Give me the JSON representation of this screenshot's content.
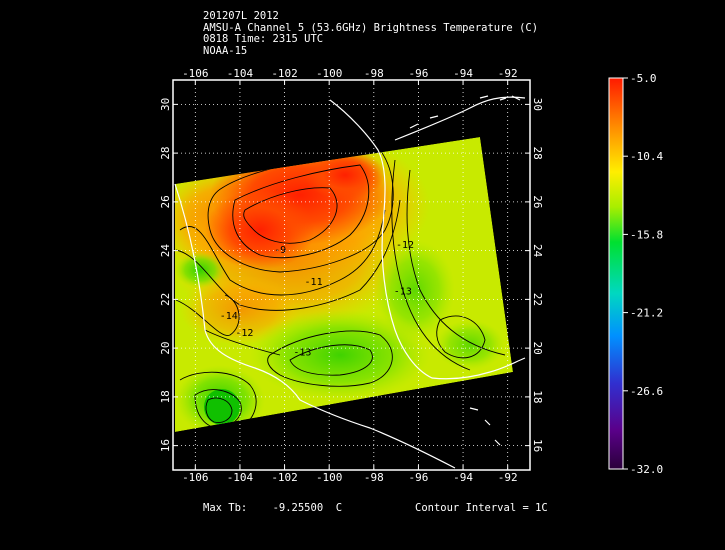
{
  "header": {
    "line1": "201207L 2012",
    "line2": "AMSU-A Channel 5 (53.6GHz) Brightness Temperature (C)",
    "line3": "0818 Time: 2315 UTC",
    "line4": "NOAA-15"
  },
  "map": {
    "lon_ticks": [
      "-106",
      "-104",
      "-102",
      "-100",
      "-98",
      "-96",
      "-94",
      "-92"
    ],
    "lat_ticks": [
      "16",
      "18",
      "20",
      "22",
      "24",
      "26",
      "28",
      "30"
    ],
    "lon_range": [
      -107,
      -91
    ],
    "lat_range": [
      15,
      31
    ],
    "contour_labels": [
      {
        "text": "-9",
        "lon": -102.2,
        "lat": 23.9
      },
      {
        "text": "-11",
        "lon": -100.7,
        "lat": 22.6
      },
      {
        "text": "-13",
        "lon": -101.2,
        "lat": 19.7
      },
      {
        "text": "-13",
        "lon": -96.7,
        "lat": 22.2
      },
      {
        "text": "-12",
        "lon": -96.6,
        "lat": 24.1
      },
      {
        "text": "-12",
        "lon": -103.8,
        "lat": 20.5
      },
      {
        "text": "-14",
        "lon": -104.5,
        "lat": 21.2
      }
    ]
  },
  "colorbar": {
    "labels": [
      "-5.0",
      "-10.4",
      "-15.8",
      "-21.2",
      "-26.6",
      "-32.0"
    ],
    "colors": [
      "#ff1a00",
      "#ff8800",
      "#ffee00",
      "#a8ee00",
      "#00e030",
      "#00d8c0",
      "#0090ff",
      "#3030d0",
      "#5a008a",
      "#2a003a"
    ]
  },
  "footer": {
    "max_tb_label": "Max Tb:",
    "max_tb_value": "-9.25500",
    "max_tb_unit": "C",
    "contour_interval": "Contour Interval = 1C"
  }
}
